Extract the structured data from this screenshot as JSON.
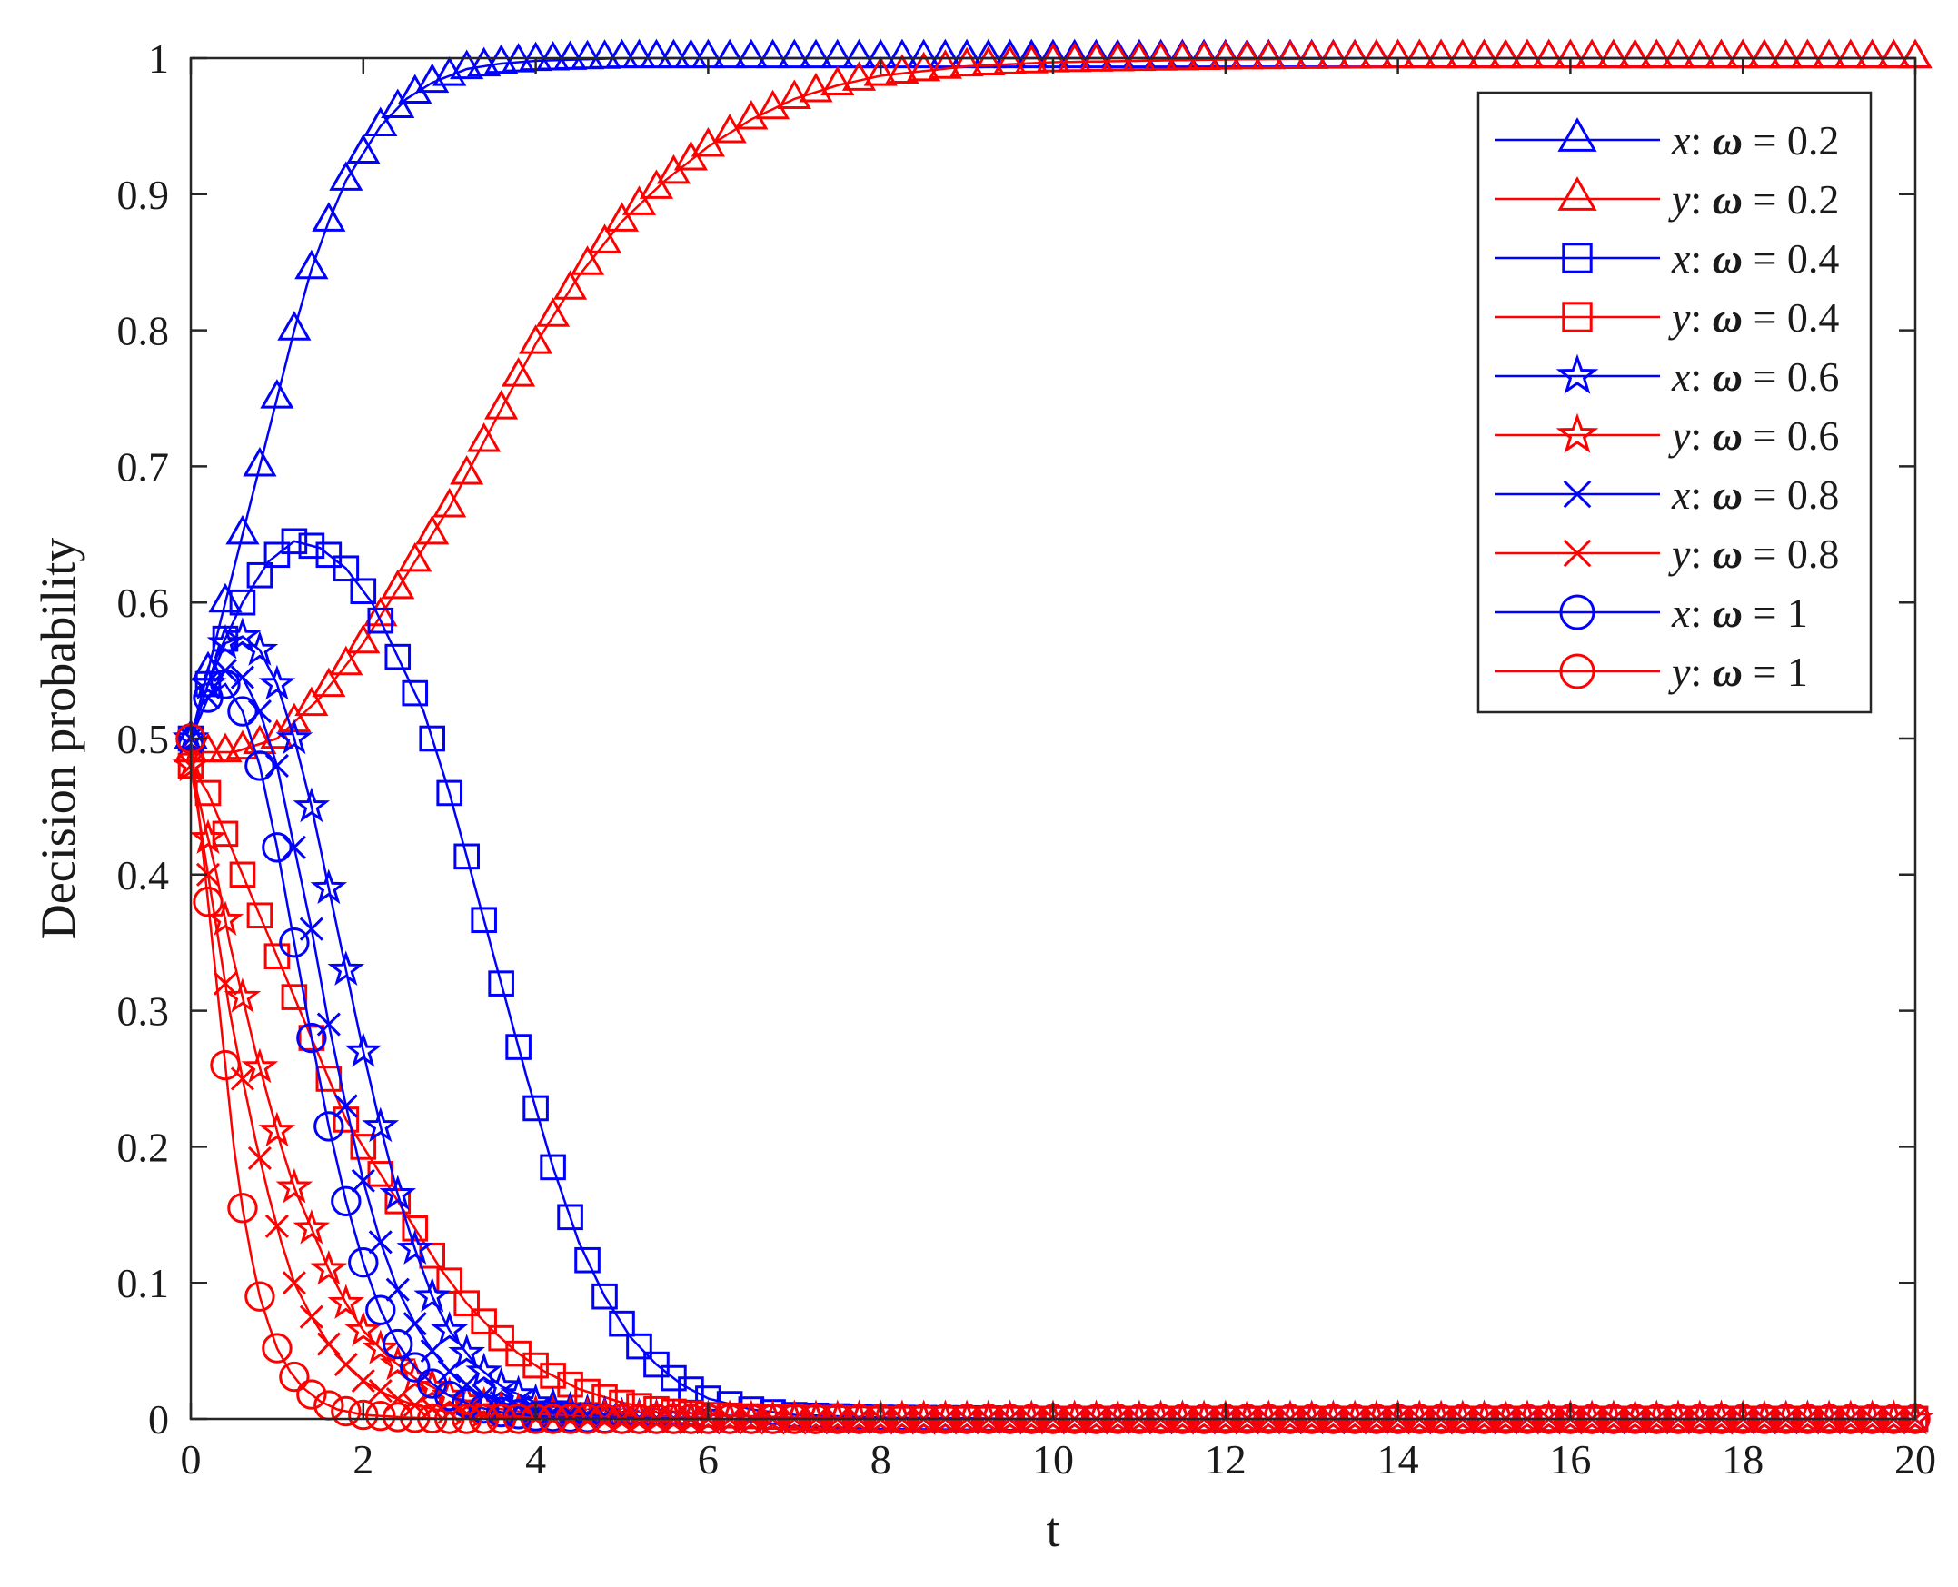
{
  "chart_data": {
    "type": "line",
    "title": "",
    "xlabel": "t",
    "ylabel": "Decision probability",
    "xlim": [
      0,
      20
    ],
    "ylim": [
      0,
      1
    ],
    "xticks": [
      "0",
      "2",
      "4",
      "6",
      "8",
      "10",
      "12",
      "14",
      "16",
      "18",
      "20"
    ],
    "yticks": [
      "0",
      "0.1",
      "0.2",
      "0.3",
      "0.4",
      "0.5",
      "0.6",
      "0.7",
      "0.8",
      "0.9",
      "1"
    ],
    "grid": false,
    "legend_position": "top-right",
    "colors": {
      "x": "#0000ff",
      "y": "#ff0000",
      "axis": "#262626"
    },
    "series": [
      {
        "name": "x: ω = 0.2",
        "var": "x",
        "omega": "0.2",
        "marker": "triangle",
        "color": "#0000ff",
        "points": [
          [
            0,
            0.5
          ],
          [
            0.2,
            0.55
          ],
          [
            0.4,
            0.6
          ],
          [
            0.6,
            0.65
          ],
          [
            0.8,
            0.7
          ],
          [
            1,
            0.75
          ],
          [
            1.2,
            0.8
          ],
          [
            1.4,
            0.845
          ],
          [
            1.6,
            0.88
          ],
          [
            1.8,
            0.91
          ],
          [
            2,
            0.93
          ],
          [
            2.2,
            0.95
          ],
          [
            2.5,
            0.97
          ],
          [
            2.8,
            0.982
          ],
          [
            3.2,
            0.992
          ],
          [
            3.6,
            0.996
          ],
          [
            4,
            0.998
          ],
          [
            5,
            1
          ],
          [
            6,
            1
          ],
          [
            8,
            1
          ],
          [
            10,
            1
          ],
          [
            12,
            1
          ],
          [
            14,
            1
          ],
          [
            16,
            1
          ],
          [
            18,
            1
          ],
          [
            20,
            1
          ]
        ]
      },
      {
        "name": "y: ω = 0.2",
        "var": "y",
        "omega": "0.2",
        "marker": "triangle",
        "color": "#ff0000",
        "points": [
          [
            0,
            0.49
          ],
          [
            0.5,
            0.49
          ],
          [
            1,
            0.5
          ],
          [
            1.5,
            0.53
          ],
          [
            2,
            0.57
          ],
          [
            2.5,
            0.62
          ],
          [
            3,
            0.67
          ],
          [
            3.5,
            0.73
          ],
          [
            4,
            0.79
          ],
          [
            4.5,
            0.84
          ],
          [
            5,
            0.88
          ],
          [
            5.5,
            0.91
          ],
          [
            6,
            0.935
          ],
          [
            6.5,
            0.955
          ],
          [
            7,
            0.97
          ],
          [
            7.5,
            0.98
          ],
          [
            8,
            0.987
          ],
          [
            9,
            0.994
          ],
          [
            10,
            0.997
          ],
          [
            12,
            0.999
          ],
          [
            14,
            1
          ],
          [
            16,
            1
          ],
          [
            18,
            1
          ],
          [
            20,
            1
          ]
        ]
      },
      {
        "name": "x: ω = 0.4",
        "var": "x",
        "omega": "0.4",
        "marker": "square",
        "color": "#0000ff",
        "points": [
          [
            0,
            0.5
          ],
          [
            0.3,
            0.56
          ],
          [
            0.6,
            0.6
          ],
          [
            0.9,
            0.63
          ],
          [
            1.2,
            0.645
          ],
          [
            1.5,
            0.64
          ],
          [
            1.8,
            0.625
          ],
          [
            2.1,
            0.6
          ],
          [
            2.4,
            0.56
          ],
          [
            2.7,
            0.52
          ],
          [
            3,
            0.46
          ],
          [
            3.3,
            0.39
          ],
          [
            3.6,
            0.32
          ],
          [
            3.9,
            0.25
          ],
          [
            4.2,
            0.185
          ],
          [
            4.5,
            0.13
          ],
          [
            4.8,
            0.09
          ],
          [
            5.1,
            0.06
          ],
          [
            5.4,
            0.04
          ],
          [
            5.7,
            0.025
          ],
          [
            6,
            0.015
          ],
          [
            6.5,
            0.007
          ],
          [
            7,
            0.003
          ],
          [
            8,
            0.001
          ],
          [
            10,
            0
          ],
          [
            12,
            0
          ],
          [
            14,
            0
          ],
          [
            16,
            0
          ],
          [
            18,
            0
          ],
          [
            20,
            0
          ]
        ]
      },
      {
        "name": "y: ω = 0.4",
        "var": "y",
        "omega": "0.4",
        "marker": "square",
        "color": "#ff0000",
        "points": [
          [
            0,
            0.48
          ],
          [
            0.2,
            0.46
          ],
          [
            0.4,
            0.43
          ],
          [
            0.6,
            0.4
          ],
          [
            0.8,
            0.37
          ],
          [
            1,
            0.34
          ],
          [
            1.2,
            0.31
          ],
          [
            1.4,
            0.28
          ],
          [
            1.6,
            0.25
          ],
          [
            1.8,
            0.22
          ],
          [
            2,
            0.2
          ],
          [
            2.3,
            0.17
          ],
          [
            2.6,
            0.14
          ],
          [
            2.9,
            0.11
          ],
          [
            3.2,
            0.085
          ],
          [
            3.5,
            0.065
          ],
          [
            3.8,
            0.048
          ],
          [
            4.1,
            0.035
          ],
          [
            4.5,
            0.022
          ],
          [
            5,
            0.012
          ],
          [
            5.5,
            0.006
          ],
          [
            6,
            0.003
          ],
          [
            7,
            0.001
          ],
          [
            8,
            0
          ],
          [
            10,
            0
          ],
          [
            14,
            0
          ],
          [
            20,
            0
          ]
        ]
      },
      {
        "name": "x: ω = 0.6",
        "var": "x",
        "omega": "0.6",
        "marker": "star",
        "color": "#0000ff",
        "points": [
          [
            0,
            0.5
          ],
          [
            0.2,
            0.54
          ],
          [
            0.4,
            0.57
          ],
          [
            0.6,
            0.575
          ],
          [
            0.8,
            0.565
          ],
          [
            1,
            0.54
          ],
          [
            1.2,
            0.5
          ],
          [
            1.4,
            0.45
          ],
          [
            1.6,
            0.39
          ],
          [
            1.8,
            0.33
          ],
          [
            2,
            0.27
          ],
          [
            2.2,
            0.215
          ],
          [
            2.4,
            0.165
          ],
          [
            2.6,
            0.125
          ],
          [
            2.8,
            0.09
          ],
          [
            3,
            0.065
          ],
          [
            3.3,
            0.04
          ],
          [
            3.6,
            0.024
          ],
          [
            4,
            0.012
          ],
          [
            4.5,
            0.005
          ],
          [
            5,
            0.002
          ],
          [
            6,
            0
          ],
          [
            8,
            0
          ],
          [
            10,
            0
          ],
          [
            14,
            0
          ],
          [
            20,
            0
          ]
        ]
      },
      {
        "name": "y: ω = 0.6",
        "var": "y",
        "omega": "0.6",
        "marker": "star",
        "color": "#ff0000",
        "points": [
          [
            0,
            0.48
          ],
          [
            0.15,
            0.44
          ],
          [
            0.3,
            0.4
          ],
          [
            0.45,
            0.35
          ],
          [
            0.6,
            0.31
          ],
          [
            0.75,
            0.27
          ],
          [
            0.9,
            0.235
          ],
          [
            1.05,
            0.2
          ],
          [
            1.2,
            0.17
          ],
          [
            1.4,
            0.14
          ],
          [
            1.6,
            0.11
          ],
          [
            1.8,
            0.085
          ],
          [
            2,
            0.065
          ],
          [
            2.3,
            0.045
          ],
          [
            2.6,
            0.03
          ],
          [
            3,
            0.017
          ],
          [
            3.5,
            0.008
          ],
          [
            4,
            0.004
          ],
          [
            5,
            0.001
          ],
          [
            6,
            0
          ],
          [
            8,
            0
          ],
          [
            12,
            0
          ],
          [
            20,
            0
          ]
        ]
      },
      {
        "name": "x: ω = 0.8",
        "var": "x",
        "omega": "0.8",
        "marker": "x",
        "color": "#0000ff",
        "points": [
          [
            0,
            0.5
          ],
          [
            0.2,
            0.53
          ],
          [
            0.4,
            0.55
          ],
          [
            0.6,
            0.545
          ],
          [
            0.8,
            0.52
          ],
          [
            1,
            0.48
          ],
          [
            1.2,
            0.42
          ],
          [
            1.4,
            0.36
          ],
          [
            1.6,
            0.29
          ],
          [
            1.8,
            0.23
          ],
          [
            2,
            0.175
          ],
          [
            2.2,
            0.13
          ],
          [
            2.4,
            0.095
          ],
          [
            2.6,
            0.07
          ],
          [
            2.8,
            0.05
          ],
          [
            3,
            0.035
          ],
          [
            3.3,
            0.02
          ],
          [
            3.6,
            0.012
          ],
          [
            4,
            0.006
          ],
          [
            5,
            0.001
          ],
          [
            6,
            0
          ],
          [
            10,
            0
          ],
          [
            20,
            0
          ]
        ]
      },
      {
        "name": "y: ω = 0.8",
        "var": "y",
        "omega": "0.8",
        "marker": "x",
        "color": "#ff0000",
        "points": [
          [
            0,
            0.48
          ],
          [
            0.15,
            0.42
          ],
          [
            0.3,
            0.36
          ],
          [
            0.45,
            0.3
          ],
          [
            0.6,
            0.25
          ],
          [
            0.75,
            0.205
          ],
          [
            0.9,
            0.165
          ],
          [
            1.05,
            0.13
          ],
          [
            1.2,
            0.1
          ],
          [
            1.4,
            0.075
          ],
          [
            1.6,
            0.055
          ],
          [
            1.8,
            0.04
          ],
          [
            2,
            0.028
          ],
          [
            2.3,
            0.017
          ],
          [
            2.6,
            0.01
          ],
          [
            3,
            0.005
          ],
          [
            3.5,
            0.002
          ],
          [
            4,
            0.001
          ],
          [
            5,
            0
          ],
          [
            8,
            0
          ],
          [
            12,
            0
          ],
          [
            20,
            0
          ]
        ]
      },
      {
        "name": "x: ω = 1",
        "var": "x",
        "omega": "1",
        "marker": "circle",
        "color": "#0000ff",
        "points": [
          [
            0,
            0.5
          ],
          [
            0.2,
            0.53
          ],
          [
            0.4,
            0.54
          ],
          [
            0.6,
            0.52
          ],
          [
            0.8,
            0.48
          ],
          [
            1,
            0.42
          ],
          [
            1.2,
            0.35
          ],
          [
            1.4,
            0.28
          ],
          [
            1.6,
            0.215
          ],
          [
            1.8,
            0.16
          ],
          [
            2,
            0.115
          ],
          [
            2.2,
            0.08
          ],
          [
            2.4,
            0.055
          ],
          [
            2.6,
            0.038
          ],
          [
            2.8,
            0.026
          ],
          [
            3,
            0.017
          ],
          [
            3.3,
            0.009
          ],
          [
            3.6,
            0.005
          ],
          [
            4,
            0.002
          ],
          [
            5,
            0
          ],
          [
            8,
            0
          ],
          [
            12,
            0
          ],
          [
            20,
            0
          ]
        ]
      },
      {
        "name": "y: ω = 1",
        "var": "y",
        "omega": "1",
        "marker": "circle",
        "color": "#ff0000",
        "points": [
          [
            0,
            0.5
          ],
          [
            0.1,
            0.44
          ],
          [
            0.2,
            0.38
          ],
          [
            0.3,
            0.32
          ],
          [
            0.4,
            0.26
          ],
          [
            0.5,
            0.2
          ],
          [
            0.6,
            0.155
          ],
          [
            0.7,
            0.12
          ],
          [
            0.8,
            0.09
          ],
          [
            0.9,
            0.07
          ],
          [
            1,
            0.052
          ],
          [
            1.15,
            0.035
          ],
          [
            1.3,
            0.023
          ],
          [
            1.5,
            0.013
          ],
          [
            1.7,
            0.007
          ],
          [
            2,
            0.003
          ],
          [
            2.5,
            0.001
          ],
          [
            3,
            0
          ],
          [
            5,
            0
          ],
          [
            10,
            0
          ],
          [
            15,
            0
          ],
          [
            20,
            0
          ]
        ]
      }
    ]
  }
}
